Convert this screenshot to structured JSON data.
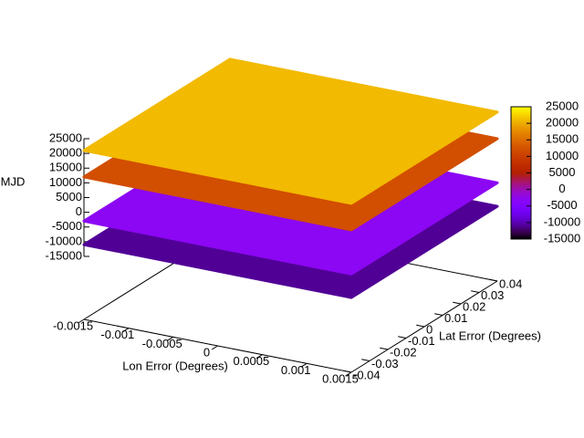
{
  "chart_data": {
    "type": "surface3d",
    "xlabel": "Lon Error (Degrees)",
    "ylabel": "Lat Error (Degrees)",
    "zlabel": "MJD",
    "xlim": [
      -0.0015,
      0.0015
    ],
    "xticks": [
      -0.0015,
      -0.001,
      -0.0005,
      0,
      0.0005,
      0.001,
      0.0015
    ],
    "ylim": [
      -0.04,
      0.04
    ],
    "yticks": [
      -0.04,
      -0.03,
      -0.02,
      -0.01,
      0,
      0.01,
      0.02,
      0.03,
      0.04
    ],
    "zlim": [
      -15000,
      25000
    ],
    "zticks": [
      -15000,
      -10000,
      -5000,
      0,
      5000,
      10000,
      15000,
      20000,
      25000
    ],
    "cblim": [
      -15000,
      25000
    ],
    "cbticks": [
      -15000,
      -10000,
      -5000,
      0,
      5000,
      10000,
      15000,
      20000,
      25000
    ],
    "layers": [
      -11000,
      -3000,
      12000,
      21000
    ]
  }
}
